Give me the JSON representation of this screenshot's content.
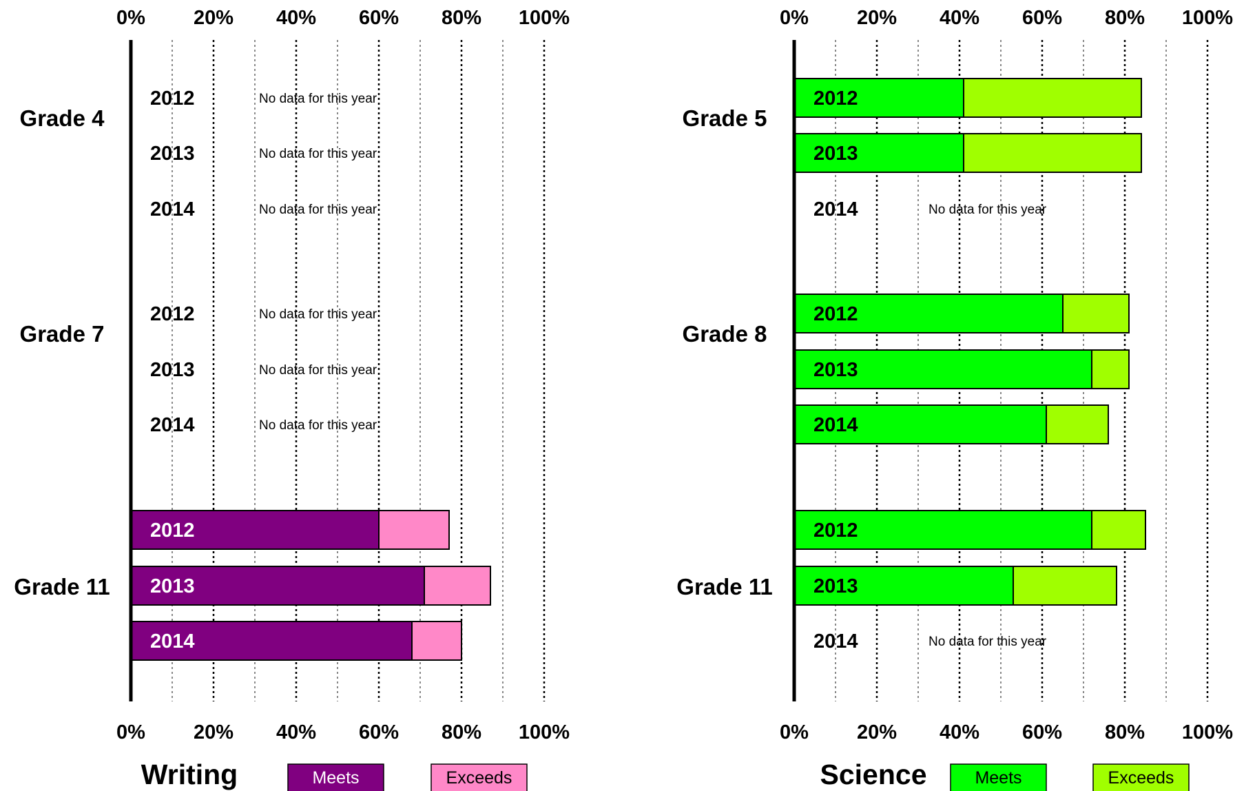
{
  "chart_data": [
    {
      "type": "bar",
      "orientation": "horizontal",
      "stacked": true,
      "title": "Writing",
      "xlim": [
        0,
        100
      ],
      "x_ticks": [
        "0%",
        "20%",
        "40%",
        "60%",
        "80%",
        "100%"
      ],
      "grid": true,
      "legend_placement": "bottom",
      "groups": [
        {
          "label": "Grade 4",
          "rows": [
            {
              "year": "2012",
              "meets": null,
              "exceeds": null,
              "note": "No data for this year"
            },
            {
              "year": "2013",
              "meets": null,
              "exceeds": null,
              "note": "No data for this year"
            },
            {
              "year": "2014",
              "meets": null,
              "exceeds": null,
              "note": "No data for this year"
            }
          ]
        },
        {
          "label": "Grade 7",
          "rows": [
            {
              "year": "2012",
              "meets": null,
              "exceeds": null,
              "note": "No data for this year"
            },
            {
              "year": "2013",
              "meets": null,
              "exceeds": null,
              "note": "No data for this year"
            },
            {
              "year": "2014",
              "meets": null,
              "exceeds": null,
              "note": "No data for this year"
            }
          ]
        },
        {
          "label": "Grade 11",
          "rows": [
            {
              "year": "2012",
              "meets": 60,
              "exceeds": 17
            },
            {
              "year": "2013",
              "meets": 71,
              "exceeds": 16
            },
            {
              "year": "2014",
              "meets": 68,
              "exceeds": 12
            }
          ]
        }
      ],
      "series": [
        {
          "name": "Meets",
          "color": "#800080"
        },
        {
          "name": "Exceeds",
          "color": "#ff88c8"
        }
      ],
      "year_label_color_on_bar": "#ffffff"
    },
    {
      "type": "bar",
      "orientation": "horizontal",
      "stacked": true,
      "title": "Science",
      "xlim": [
        0,
        100
      ],
      "x_ticks": [
        "0%",
        "20%",
        "40%",
        "60%",
        "80%",
        "100%"
      ],
      "grid": true,
      "legend_placement": "bottom",
      "groups": [
        {
          "label": "Grade 5",
          "rows": [
            {
              "year": "2012",
              "meets": 41,
              "exceeds": 43
            },
            {
              "year": "2013",
              "meets": 41,
              "exceeds": 43
            },
            {
              "year": "2014",
              "meets": null,
              "exceeds": null,
              "note": "No data for this year"
            }
          ]
        },
        {
          "label": "Grade 8",
          "rows": [
            {
              "year": "2012",
              "meets": 65,
              "exceeds": 16
            },
            {
              "year": "2013",
              "meets": 72,
              "exceeds": 9
            },
            {
              "year": "2014",
              "meets": 61,
              "exceeds": 15
            }
          ]
        },
        {
          "label": "Grade 11",
          "rows": [
            {
              "year": "2012",
              "meets": 72,
              "exceeds": 13
            },
            {
              "year": "2013",
              "meets": 53,
              "exceeds": 25
            },
            {
              "year": "2014",
              "meets": null,
              "exceeds": null,
              "note": "No data for this year"
            }
          ]
        }
      ],
      "series": [
        {
          "name": "Meets",
          "color": "#00ff00"
        },
        {
          "name": "Exceeds",
          "color": "#a0ff00"
        }
      ],
      "year_label_color_on_bar": "#000000"
    }
  ]
}
